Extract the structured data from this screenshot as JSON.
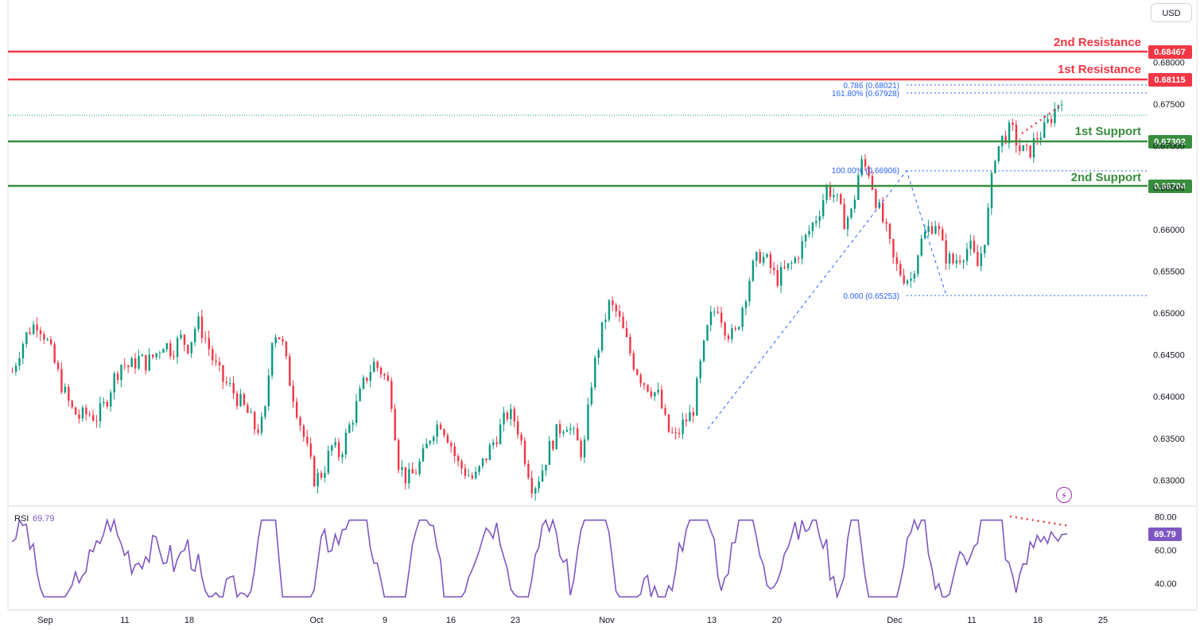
{
  "toolbar": {
    "currency": "USD"
  },
  "chart_data": {
    "type": "candlestick",
    "price_scale": {
      "min": 0.627,
      "max": 0.6865,
      "ticks": [
        "0.68000",
        "0.67500",
        "0.67000",
        "0.66500",
        "0.66000",
        "0.65500",
        "0.65000",
        "0.64500",
        "0.64000",
        "0.63500",
        "0.63000"
      ]
    },
    "time_ticks": [
      "Sep",
      "11",
      "18",
      "Oct",
      "9",
      "16",
      "23",
      "Nov",
      "13",
      "20",
      "Dec",
      "11",
      "18",
      "25"
    ],
    "levels": [
      {
        "name": "2nd Resistance",
        "value": 0.68467,
        "label": "0.68467",
        "color": "#f23645"
      },
      {
        "name": "1st Resistance",
        "value": 0.68115,
        "label": "0.68115",
        "color": "#f23645"
      },
      {
        "name": "1st Support",
        "value": 0.67302,
        "label": "0.67302",
        "color": "#388e3c"
      },
      {
        "name": "2nd Support",
        "value": 0.66704,
        "label": "0.66704",
        "color": "#388e3c"
      }
    ],
    "fibonacci": [
      {
        "label": "0.786 (0.68021)",
        "value": 0.68021
      },
      {
        "label": "161.80% (0.67928)",
        "value": 0.67928
      },
      {
        "label": "100.00% (0.66906)",
        "value": 0.66906
      },
      {
        "label": "0.000 (0.65253)",
        "value": 0.65253
      }
    ],
    "candles_close_path": [
      0.643,
      0.646,
      0.648,
      0.649,
      0.647,
      0.644,
      0.641,
      0.6385,
      0.6375,
      0.638,
      0.6375,
      0.639,
      0.642,
      0.644,
      0.6435,
      0.6445,
      0.644,
      0.645,
      0.6465,
      0.6455,
      0.647,
      0.646,
      0.649,
      0.647,
      0.644,
      0.642,
      0.641,
      0.6395,
      0.638,
      0.636,
      0.637,
      0.648,
      0.647,
      0.642,
      0.638,
      0.634,
      0.63,
      0.631,
      0.634,
      0.633,
      0.636,
      0.639,
      0.642,
      0.644,
      0.643,
      0.641,
      0.632,
      0.63,
      0.631,
      0.633,
      0.636,
      0.637,
      0.635,
      0.632,
      0.631,
      0.63,
      0.632,
      0.634,
      0.636,
      0.638,
      0.637,
      0.633,
      0.629,
      0.631,
      0.634,
      0.636,
      0.637,
      0.635,
      0.633,
      0.642,
      0.647,
      0.651,
      0.65,
      0.647,
      0.644,
      0.642,
      0.641,
      0.64,
      0.636,
      0.635,
      0.637,
      0.638,
      0.644,
      0.649,
      0.651,
      0.648,
      0.647,
      0.651,
      0.655,
      0.657,
      0.656,
      0.654,
      0.655,
      0.656,
      0.658,
      0.66,
      0.662,
      0.665,
      0.664,
      0.661,
      0.662,
      0.668,
      0.667,
      0.663,
      0.66,
      0.656,
      0.6545,
      0.654,
      0.658,
      0.66,
      0.661,
      0.657,
      0.656,
      0.657,
      0.658,
      0.6555,
      0.66,
      0.669,
      0.671,
      0.672,
      0.6695,
      0.669,
      0.671,
      0.672,
      0.674,
      0.676
    ],
    "rsi": {
      "label": "RSI",
      "value": "69.79",
      "ticks": [
        "80.00",
        "60.00",
        "40.00"
      ],
      "min": 25,
      "max": 85,
      "color": "#7e57c2"
    }
  }
}
